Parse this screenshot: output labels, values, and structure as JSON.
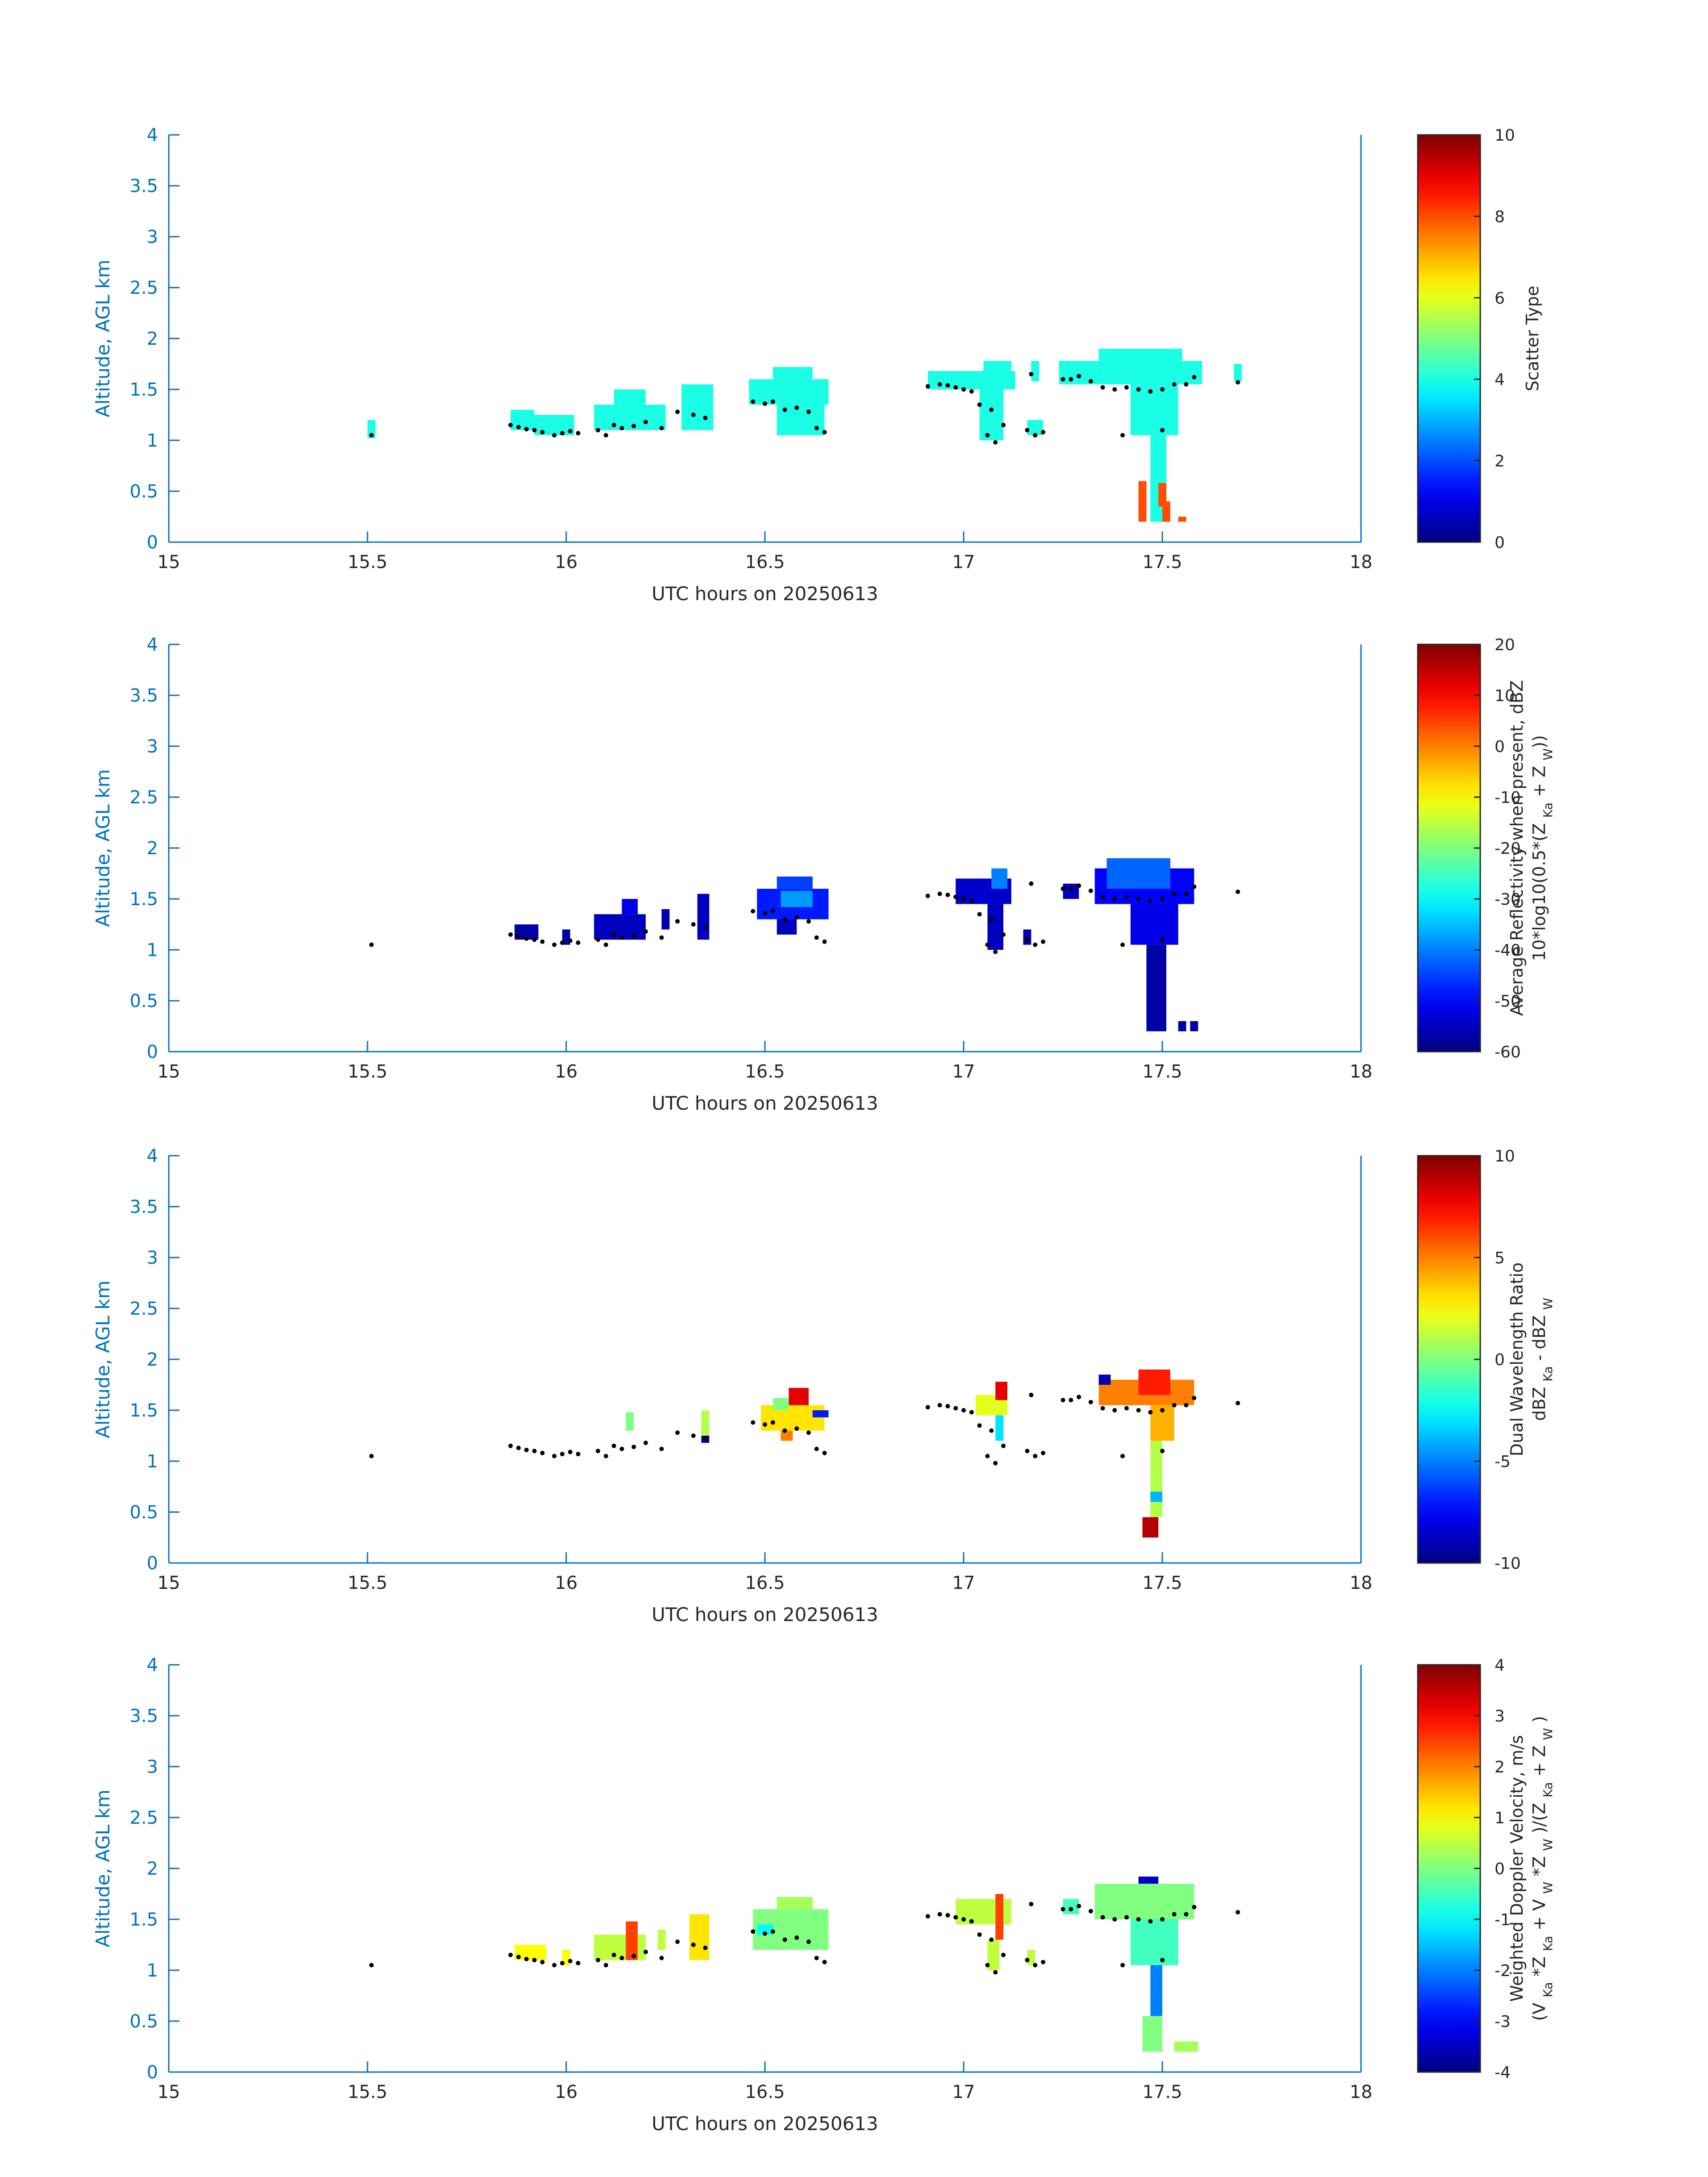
{
  "chart_data": [
    {
      "type": "heatmap",
      "panel": "scatter",
      "xlim": [
        15,
        18
      ],
      "ylim": [
        0,
        4
      ],
      "xticks": [
        "15",
        "15.5",
        "16",
        "16.5",
        "17",
        "17.5",
        "18"
      ],
      "yticks": [
        "0",
        "0.5",
        "1",
        "1.5",
        "2",
        "2.5",
        "3",
        "3.5",
        "4"
      ],
      "xlabel": "UTC hours on 20250613",
      "ylabel": "Altitude, AGL km",
      "colorbar": {
        "label_lines": [
          "Scatter Type"
        ],
        "range": [
          0,
          10
        ],
        "ticks": [
          "0",
          "2",
          "4",
          "6",
          "8",
          "10"
        ]
      },
      "cells": [
        {
          "x0": 15.5,
          "x1": 15.52,
          "y0": 1.02,
          "y1": 1.2,
          "v": 4
        },
        {
          "x0": 15.86,
          "x1": 15.92,
          "y0": 1.1,
          "y1": 1.3,
          "v": 4
        },
        {
          "x0": 15.92,
          "x1": 16.02,
          "y0": 1.05,
          "y1": 1.25,
          "v": 4
        },
        {
          "x0": 16.07,
          "x1": 16.25,
          "y0": 1.1,
          "y1": 1.35,
          "v": 4
        },
        {
          "x0": 16.12,
          "x1": 16.2,
          "y0": 1.35,
          "y1": 1.5,
          "v": 4
        },
        {
          "x0": 16.29,
          "x1": 16.37,
          "y0": 1.1,
          "y1": 1.55,
          "v": 4
        },
        {
          "x0": 16.46,
          "x1": 16.66,
          "y0": 1.35,
          "y1": 1.6,
          "v": 4
        },
        {
          "x0": 16.52,
          "x1": 16.62,
          "y0": 1.6,
          "y1": 1.72,
          "v": 4
        },
        {
          "x0": 16.53,
          "x1": 16.65,
          "y0": 1.05,
          "y1": 1.35,
          "v": 4
        },
        {
          "x0": 16.91,
          "x1": 17.13,
          "y0": 1.5,
          "y1": 1.68,
          "v": 4
        },
        {
          "x0": 17.05,
          "x1": 17.12,
          "y0": 1.68,
          "y1": 1.78,
          "v": 4
        },
        {
          "x0": 17.04,
          "x1": 17.1,
          "y0": 1.0,
          "y1": 1.5,
          "v": 4
        },
        {
          "x0": 17.16,
          "x1": 17.2,
          "y0": 1.05,
          "y1": 1.2,
          "v": 4
        },
        {
          "x0": 17.17,
          "x1": 17.19,
          "y0": 1.58,
          "y1": 1.78,
          "v": 4
        },
        {
          "x0": 17.24,
          "x1": 17.6,
          "y0": 1.55,
          "y1": 1.78,
          "v": 4
        },
        {
          "x0": 17.34,
          "x1": 17.55,
          "y0": 1.78,
          "y1": 1.9,
          "v": 4
        },
        {
          "x0": 17.42,
          "x1": 17.54,
          "y0": 1.05,
          "y1": 1.55,
          "v": 4
        },
        {
          "x0": 17.47,
          "x1": 17.51,
          "y0": 0.2,
          "y1": 1.05,
          "v": 4
        },
        {
          "x0": 17.68,
          "x1": 17.7,
          "y0": 1.58,
          "y1": 1.75,
          "v": 4
        },
        {
          "x0": 17.44,
          "x1": 17.46,
          "y0": 0.2,
          "y1": 0.6,
          "v": 8
        },
        {
          "x0": 17.49,
          "x1": 17.51,
          "y0": 0.35,
          "y1": 0.58,
          "v": 8
        },
        {
          "x0": 17.5,
          "x1": 17.52,
          "y0": 0.2,
          "y1": 0.4,
          "v": 8
        },
        {
          "x0": 17.54,
          "x1": 17.56,
          "y0": 0.2,
          "y1": 0.25,
          "v": 8
        }
      ]
    },
    {
      "type": "heatmap",
      "panel": "reflectivity",
      "xlim": [
        15,
        18
      ],
      "ylim": [
        0,
        4
      ],
      "xticks": [
        "15",
        "15.5",
        "16",
        "16.5",
        "17",
        "17.5",
        "18"
      ],
      "yticks": [
        "0",
        "0.5",
        "1",
        "1.5",
        "2",
        "2.5",
        "3",
        "3.5",
        "4"
      ],
      "xlabel": "UTC hours on 20250613",
      "ylabel": "Altitude, AGL km",
      "colorbar": {
        "label_lines": [
          "Average Reflectivity when present, dBZ",
          "10*log10(0.5*(Z Ka + Z W))"
        ],
        "range": [
          -60,
          20
        ],
        "ticks": [
          "-60",
          "-50",
          "-40",
          "-30",
          "-20",
          "-10",
          "0",
          "10",
          "20"
        ]
      },
      "cells": [
        {
          "x0": 15.87,
          "x1": 15.93,
          "y0": 1.1,
          "y1": 1.25,
          "v": -57
        },
        {
          "x0": 15.99,
          "x1": 16.01,
          "y0": 1.05,
          "y1": 1.2,
          "v": -57
        },
        {
          "x0": 16.07,
          "x1": 16.2,
          "y0": 1.1,
          "y1": 1.35,
          "v": -55
        },
        {
          "x0": 16.14,
          "x1": 16.18,
          "y0": 1.35,
          "y1": 1.5,
          "v": -52
        },
        {
          "x0": 16.24,
          "x1": 16.26,
          "y0": 1.2,
          "y1": 1.4,
          "v": -56
        },
        {
          "x0": 16.33,
          "x1": 16.36,
          "y0": 1.1,
          "y1": 1.55,
          "v": -55
        },
        {
          "x0": 16.48,
          "x1": 16.66,
          "y0": 1.3,
          "y1": 1.6,
          "v": -48
        },
        {
          "x0": 16.53,
          "x1": 16.62,
          "y0": 1.6,
          "y1": 1.72,
          "v": -45
        },
        {
          "x0": 16.53,
          "x1": 16.58,
          "y0": 1.15,
          "y1": 1.3,
          "v": -55
        },
        {
          "x0": 16.54,
          "x1": 16.62,
          "y0": 1.42,
          "y1": 1.58,
          "v": -38
        },
        {
          "x0": 16.98,
          "x1": 17.12,
          "y0": 1.45,
          "y1": 1.7,
          "v": -54
        },
        {
          "x0": 17.06,
          "x1": 17.1,
          "y0": 1.0,
          "y1": 1.45,
          "v": -55
        },
        {
          "x0": 17.07,
          "x1": 17.11,
          "y0": 1.6,
          "y1": 1.8,
          "v": -40
        },
        {
          "x0": 17.15,
          "x1": 17.17,
          "y0": 1.05,
          "y1": 1.2,
          "v": -56
        },
        {
          "x0": 17.25,
          "x1": 17.29,
          "y0": 1.5,
          "y1": 1.65,
          "v": -55
        },
        {
          "x0": 17.33,
          "x1": 17.58,
          "y0": 1.45,
          "y1": 1.8,
          "v": -50
        },
        {
          "x0": 17.36,
          "x1": 17.52,
          "y0": 1.6,
          "y1": 1.9,
          "v": -42
        },
        {
          "x0": 17.42,
          "x1": 17.54,
          "y0": 1.05,
          "y1": 1.45,
          "v": -52
        },
        {
          "x0": 17.46,
          "x1": 17.51,
          "y0": 0.2,
          "y1": 1.05,
          "v": -57
        },
        {
          "x0": 17.54,
          "x1": 17.56,
          "y0": 0.2,
          "y1": 0.3,
          "v": -57
        },
        {
          "x0": 17.57,
          "x1": 17.59,
          "y0": 0.2,
          "y1": 0.3,
          "v": -57
        }
      ]
    },
    {
      "type": "heatmap",
      "panel": "dwr",
      "xlim": [
        15,
        18
      ],
      "ylim": [
        0,
        4
      ],
      "xticks": [
        "15",
        "15.5",
        "16",
        "16.5",
        "17",
        "17.5",
        "18"
      ],
      "yticks": [
        "0",
        "0.5",
        "1",
        "1.5",
        "2",
        "2.5",
        "3",
        "3.5",
        "4"
      ],
      "xlabel": "UTC hours on 20250613",
      "ylabel": "Altitude, AGL km",
      "colorbar": {
        "label_lines": [
          "Dual Wavelength Ratio",
          "dBZ Ka - dBZ W"
        ],
        "range": [
          -10,
          10
        ],
        "ticks": [
          "-10",
          "-5",
          "0",
          "5",
          "10"
        ]
      },
      "cells": [
        {
          "x0": 16.15,
          "x1": 16.17,
          "y0": 1.3,
          "y1": 1.48,
          "v": 0
        },
        {
          "x0": 16.34,
          "x1": 16.36,
          "y0": 1.25,
          "y1": 1.5,
          "v": 1
        },
        {
          "x0": 16.34,
          "x1": 16.36,
          "y0": 1.18,
          "y1": 1.25,
          "v": -9
        },
        {
          "x0": 16.49,
          "x1": 16.65,
          "y0": 1.3,
          "y1": 1.55,
          "v": 3
        },
        {
          "x0": 16.56,
          "x1": 16.61,
          "y0": 1.55,
          "y1": 1.72,
          "v": 8
        },
        {
          "x0": 16.52,
          "x1": 16.56,
          "y0": 1.5,
          "y1": 1.62,
          "v": 0
        },
        {
          "x0": 16.62,
          "x1": 16.66,
          "y0": 1.43,
          "y1": 1.5,
          "v": -7
        },
        {
          "x0": 16.54,
          "x1": 16.57,
          "y0": 1.2,
          "y1": 1.3,
          "v": 5
        },
        {
          "x0": 17.03,
          "x1": 17.11,
          "y0": 1.45,
          "y1": 1.65,
          "v": 2
        },
        {
          "x0": 17.08,
          "x1": 17.11,
          "y0": 1.6,
          "y1": 1.78,
          "v": 8
        },
        {
          "x0": 17.08,
          "x1": 17.1,
          "y0": 1.2,
          "y1": 1.45,
          "v": -3
        },
        {
          "x0": 17.34,
          "x1": 17.58,
          "y0": 1.55,
          "y1": 1.8,
          "v": 5
        },
        {
          "x0": 17.44,
          "x1": 17.52,
          "y0": 1.65,
          "y1": 1.9,
          "v": 7
        },
        {
          "x0": 17.34,
          "x1": 17.37,
          "y0": 1.75,
          "y1": 1.85,
          "v": -9
        },
        {
          "x0": 17.47,
          "x1": 17.53,
          "y0": 1.2,
          "y1": 1.55,
          "v": 4
        },
        {
          "x0": 17.47,
          "x1": 17.5,
          "y0": 0.45,
          "y1": 1.2,
          "v": 1
        },
        {
          "x0": 17.45,
          "x1": 17.49,
          "y0": 0.25,
          "y1": 0.45,
          "v": 9
        },
        {
          "x0": 17.47,
          "x1": 17.5,
          "y0": 0.6,
          "y1": 0.7,
          "v": -4
        }
      ]
    },
    {
      "type": "heatmap",
      "panel": "doppler",
      "xlim": [
        15,
        18
      ],
      "ylim": [
        0,
        4
      ],
      "xticks": [
        "15",
        "15.5",
        "16",
        "16.5",
        "17",
        "17.5",
        "18"
      ],
      "yticks": [
        "0",
        "0.5",
        "1",
        "1.5",
        "2",
        "2.5",
        "3",
        "3.5",
        "4"
      ],
      "xlabel": "UTC hours on 20250613",
      "ylabel": "Altitude, AGL km",
      "colorbar": {
        "label_lines": [
          "Weighted Doppler Velocity, m/s",
          "(V Ka *Z Ka + V W *Z W )/(Z Ka + Z W )"
        ],
        "range": [
          -4,
          4
        ],
        "ticks": [
          "-4",
          "-3",
          "-2",
          "-1",
          "0",
          "1",
          "2",
          "3",
          "4"
        ]
      },
      "cells": [
        {
          "x0": 15.87,
          "x1": 15.95,
          "y0": 1.1,
          "y1": 1.25,
          "v": 1
        },
        {
          "x0": 15.99,
          "x1": 16.01,
          "y0": 1.05,
          "y1": 1.2,
          "v": 1
        },
        {
          "x0": 16.07,
          "x1": 16.2,
          "y0": 1.1,
          "y1": 1.35,
          "v": 0.5
        },
        {
          "x0": 16.15,
          "x1": 16.18,
          "y0": 1.1,
          "y1": 1.48,
          "v": 2.5
        },
        {
          "x0": 16.23,
          "x1": 16.25,
          "y0": 1.2,
          "y1": 1.4,
          "v": 0.5
        },
        {
          "x0": 16.31,
          "x1": 16.36,
          "y0": 1.1,
          "y1": 1.55,
          "v": 1.2
        },
        {
          "x0": 16.47,
          "x1": 16.66,
          "y0": 1.2,
          "y1": 1.6,
          "v": 0
        },
        {
          "x0": 16.53,
          "x1": 16.62,
          "y0": 1.6,
          "y1": 1.72,
          "v": 0.3
        },
        {
          "x0": 16.48,
          "x1": 16.52,
          "y0": 1.35,
          "y1": 1.45,
          "v": -1
        },
        {
          "x0": 16.98,
          "x1": 17.12,
          "y0": 1.45,
          "y1": 1.7,
          "v": 0.5
        },
        {
          "x0": 17.08,
          "x1": 17.1,
          "y0": 1.3,
          "y1": 1.75,
          "v": 2.5
        },
        {
          "x0": 17.06,
          "x1": 17.09,
          "y0": 1.0,
          "y1": 1.3,
          "v": 0.5
        },
        {
          "x0": 17.16,
          "x1": 17.18,
          "y0": 1.05,
          "y1": 1.2,
          "v": 0.5
        },
        {
          "x0": 17.25,
          "x1": 17.29,
          "y0": 1.55,
          "y1": 1.7,
          "v": -0.5
        },
        {
          "x0": 17.33,
          "x1": 17.58,
          "y0": 1.5,
          "y1": 1.85,
          "v": 0
        },
        {
          "x0": 17.44,
          "x1": 17.49,
          "y0": 1.85,
          "y1": 1.92,
          "v": -3.5
        },
        {
          "x0": 17.42,
          "x1": 17.54,
          "y0": 1.05,
          "y1": 1.5,
          "v": -0.5
        },
        {
          "x0": 17.47,
          "x1": 17.5,
          "y0": 0.55,
          "y1": 1.05,
          "v": -2
        },
        {
          "x0": 17.45,
          "x1": 17.5,
          "y0": 0.2,
          "y1": 0.55,
          "v": 0
        },
        {
          "x0": 17.53,
          "x1": 17.59,
          "y0": 0.2,
          "y1": 0.3,
          "v": 0.3
        }
      ]
    }
  ],
  "cloud_base_dots": [
    [
      15.51,
      1.05
    ],
    [
      15.86,
      1.15
    ],
    [
      15.88,
      1.13
    ],
    [
      15.9,
      1.11
    ],
    [
      15.92,
      1.1
    ],
    [
      15.94,
      1.08
    ],
    [
      15.97,
      1.05
    ],
    [
      15.99,
      1.07
    ],
    [
      16.01,
      1.09
    ],
    [
      16.03,
      1.07
    ],
    [
      16.08,
      1.1
    ],
    [
      16.1,
      1.05
    ],
    [
      16.12,
      1.15
    ],
    [
      16.14,
      1.12
    ],
    [
      16.17,
      1.14
    ],
    [
      16.2,
      1.18
    ],
    [
      16.24,
      1.12
    ],
    [
      16.28,
      1.28
    ],
    [
      16.32,
      1.25
    ],
    [
      16.35,
      1.22
    ],
    [
      16.47,
      1.38
    ],
    [
      16.5,
      1.36
    ],
    [
      16.52,
      1.38
    ],
    [
      16.55,
      1.3
    ],
    [
      16.58,
      1.32
    ],
    [
      16.61,
      1.28
    ],
    [
      16.63,
      1.12
    ],
    [
      16.65,
      1.08
    ],
    [
      16.91,
      1.53
    ],
    [
      16.94,
      1.55
    ],
    [
      16.96,
      1.54
    ],
    [
      16.98,
      1.52
    ],
    [
      17.0,
      1.5
    ],
    [
      17.02,
      1.48
    ],
    [
      17.04,
      1.35
    ],
    [
      17.07,
      1.3
    ],
    [
      17.06,
      1.05
    ],
    [
      17.08,
      0.98
    ],
    [
      17.1,
      1.15
    ],
    [
      17.16,
      1.1
    ],
    [
      17.18,
      1.05
    ],
    [
      17.2,
      1.08
    ],
    [
      17.17,
      1.65
    ],
    [
      17.25,
      1.6
    ],
    [
      17.27,
      1.6
    ],
    [
      17.29,
      1.63
    ],
    [
      17.32,
      1.58
    ],
    [
      17.35,
      1.52
    ],
    [
      17.38,
      1.5
    ],
    [
      17.41,
      1.52
    ],
    [
      17.44,
      1.5
    ],
    [
      17.47,
      1.48
    ],
    [
      17.5,
      1.5
    ],
    [
      17.53,
      1.55
    ],
    [
      17.56,
      1.55
    ],
    [
      17.58,
      1.62
    ],
    [
      17.69,
      1.57
    ],
    [
      17.4,
      1.05
    ],
    [
      17.5,
      1.1
    ]
  ]
}
